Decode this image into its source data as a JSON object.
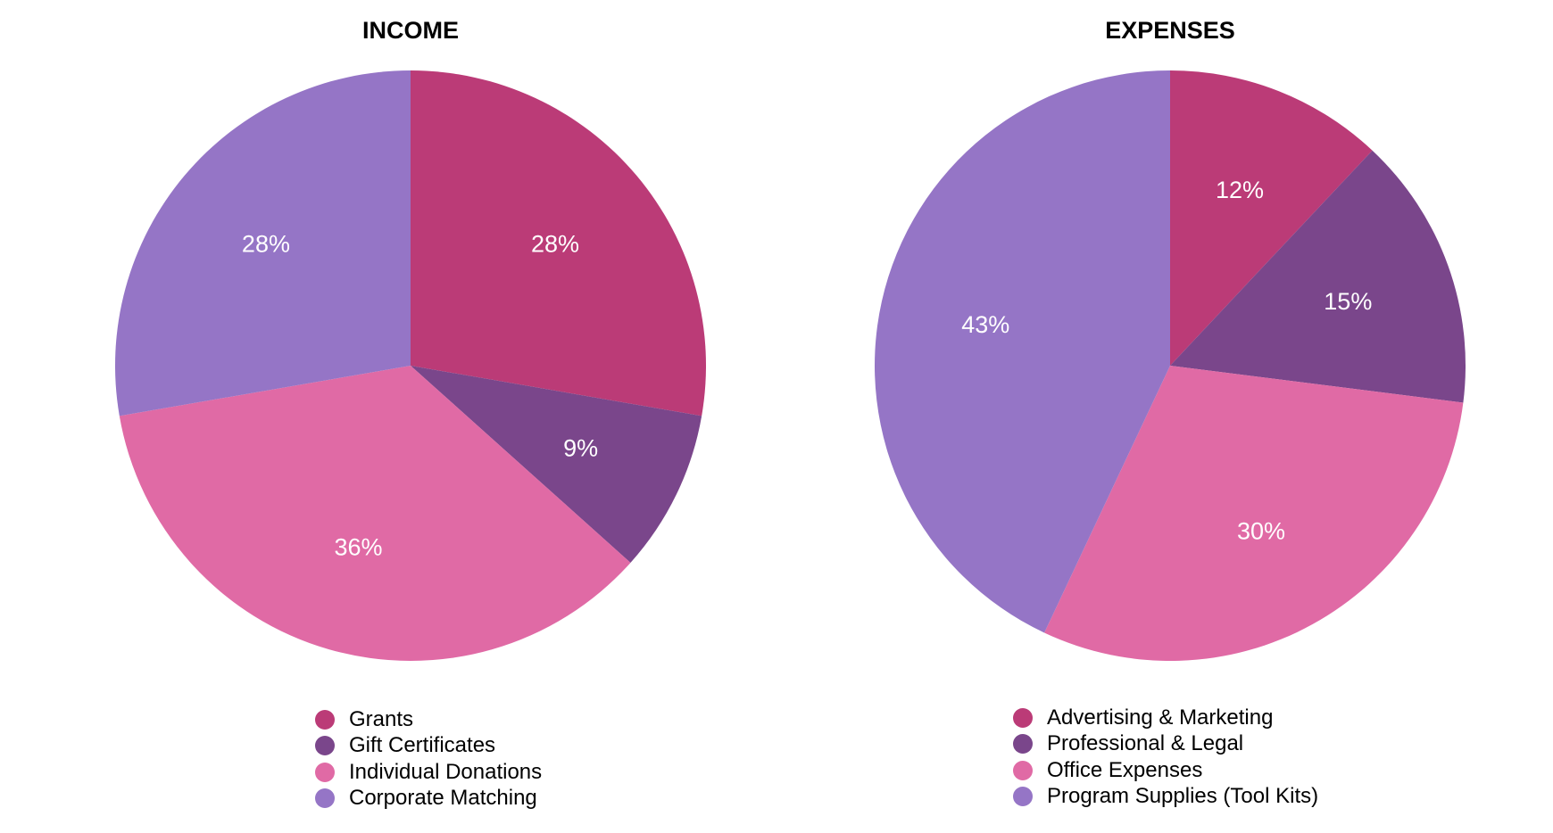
{
  "chart_data": [
    {
      "type": "pie",
      "title": "INCOME",
      "categories": [
        "Grants",
        "Gift Certificates",
        "Individual Donations",
        "Corporate Matching"
      ],
      "values": [
        28,
        9,
        36,
        28
      ],
      "labels": [
        "28%",
        "9%",
        "36%",
        "28%"
      ],
      "colors": [
        "#bb3b77",
        "#7a468b",
        "#e06aa5",
        "#9575c6"
      ],
      "start": "top",
      "direction": "clockwise",
      "legend": "bottom"
    },
    {
      "type": "pie",
      "title": "EXPENSES",
      "categories": [
        "Advertising & Marketing",
        "Professional & Legal",
        "Office Expenses",
        "Program Supplies (Tool Kits)"
      ],
      "values": [
        12,
        15,
        30,
        43
      ],
      "labels": [
        "12%",
        "15%",
        "30%",
        "43%"
      ],
      "colors": [
        "#bb3b77",
        "#7a468b",
        "#e06aa5",
        "#9575c6"
      ],
      "start": "top",
      "direction": "clockwise",
      "legend": "bottom"
    }
  ]
}
